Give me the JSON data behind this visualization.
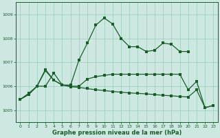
{
  "bg_color": "#cce8e0",
  "grid_color": "#99ccbb",
  "line_color": "#1a5c2a",
  "xlabel": "Graphe pression niveau de la mer (hPa)",
  "xlim": [
    -0.5,
    23.5
  ],
  "ylim": [
    1004.5,
    1009.5
  ],
  "yticks": [
    1005,
    1006,
    1007,
    1008,
    1009
  ],
  "xticks": [
    0,
    1,
    2,
    3,
    4,
    5,
    6,
    7,
    8,
    9,
    10,
    11,
    12,
    13,
    14,
    15,
    16,
    17,
    18,
    19,
    20,
    21,
    22,
    23
  ],
  "line1_x": [
    0,
    1,
    2,
    3,
    4,
    5,
    6,
    7,
    8,
    9,
    10,
    11,
    12,
    13,
    14,
    15,
    16,
    17,
    18,
    19,
    20
  ],
  "line1_y": [
    1005.45,
    1005.7,
    1006.0,
    1006.7,
    1006.25,
    1006.05,
    1006.05,
    1007.1,
    1007.8,
    1008.55,
    1008.85,
    1008.6,
    1008.0,
    1007.65,
    1007.65,
    1007.45,
    1007.5,
    1007.8,
    1007.75,
    1007.45,
    1007.45
  ],
  "line2_x": [
    0,
    1,
    2,
    3,
    4,
    5,
    6,
    7,
    8,
    9,
    10,
    11,
    12,
    13,
    14,
    15,
    16,
    17,
    18,
    19,
    20,
    21,
    22,
    23
  ],
  "line2_y": [
    1005.45,
    1005.65,
    1006.0,
    1006.65,
    1006.25,
    1006.05,
    1006.0,
    1006.0,
    1006.3,
    1006.4,
    1006.45,
    1006.5,
    1006.5,
    1006.5,
    1006.5,
    1006.5,
    1006.5,
    1006.5,
    1006.5,
    1006.5,
    1005.85,
    1006.2,
    1005.1,
    1005.2
  ],
  "line3_x": [
    0,
    1,
    2,
    3,
    4,
    5,
    6,
    7,
    8,
    9,
    10,
    11,
    12,
    13,
    14,
    15,
    16,
    17,
    18,
    19,
    20,
    21,
    22,
    23
  ],
  "line3_y": [
    1005.45,
    1005.65,
    1006.0,
    1006.0,
    1006.55,
    1006.05,
    1005.98,
    1005.95,
    1005.9,
    1005.85,
    1005.82,
    1005.78,
    1005.75,
    1005.72,
    1005.7,
    1005.68,
    1005.65,
    1005.62,
    1005.6,
    1005.57,
    1005.55,
    1005.85,
    1005.1,
    1005.2
  ]
}
